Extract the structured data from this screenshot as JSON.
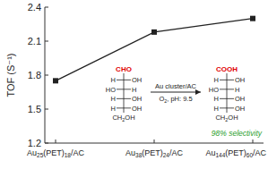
{
  "chart_data": {
    "type": "line",
    "y_label": "TOF (S⁻¹)",
    "categories": [
      "Au25(PET)18/AC",
      "Au38(PET)24/AC",
      "Au144(PET)60/AC"
    ],
    "values": [
      1.75,
      2.18,
      2.3
    ],
    "color": "#222222",
    "marker": "square",
    "ylim": [
      1.2,
      2.4
    ],
    "yticks": [
      1.2,
      1.5,
      1.8,
      2.1,
      2.4
    ],
    "annotations": {
      "reactant": {
        "top": "CHO",
        "rows": [
          [
            "H",
            "OH"
          ],
          [
            "HO",
            "H"
          ],
          [
            "H",
            "OH"
          ],
          [
            "H",
            "OH"
          ]
        ],
        "bottom": "CH2OH"
      },
      "product": {
        "top": "COOH",
        "rows": [
          [
            "H",
            "OH"
          ],
          [
            "HO",
            "H"
          ],
          [
            "H",
            "OH"
          ],
          [
            "H",
            "OH"
          ]
        ],
        "bottom": "CH2OH"
      },
      "catalyst": "Au cluster/AC",
      "conditions": "O2, pH: 9.5",
      "selectivity": "98% selectivity"
    }
  }
}
